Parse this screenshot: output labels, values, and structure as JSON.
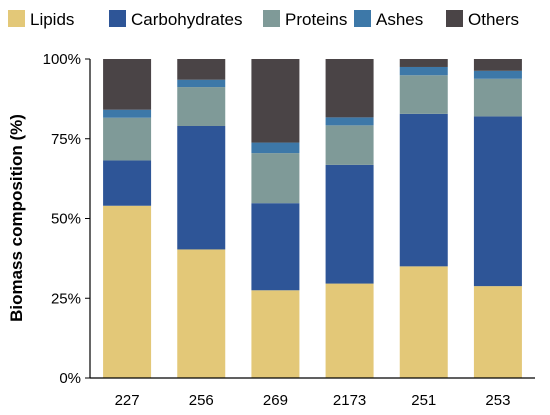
{
  "chart_data": {
    "type": "bar",
    "stacked": true,
    "percent_stacked": true,
    "categories": [
      "227",
      "256",
      "269",
      "2173",
      "251",
      "253"
    ],
    "series": [
      {
        "name": "Lipids",
        "color": "#E3C878",
        "values": [
          54.0,
          40.3,
          27.5,
          29.6,
          35.0,
          28.8
        ]
      },
      {
        "name": "Carbohydrates",
        "color": "#2E5597",
        "values": [
          14.2,
          38.7,
          27.3,
          37.2,
          47.8,
          53.2
        ]
      },
      {
        "name": "Proteins",
        "color": "#7F9A98",
        "values": [
          13.4,
          12.2,
          15.7,
          12.4,
          12.1,
          11.8
        ]
      },
      {
        "name": "Ashes",
        "color": "#3D78A8",
        "values": [
          2.5,
          2.3,
          3.3,
          2.5,
          2.6,
          2.5
        ]
      },
      {
        "name": "Others",
        "color": "#4A4446",
        "values": [
          15.9,
          6.5,
          26.2,
          18.3,
          2.5,
          3.7
        ]
      }
    ],
    "ylabel": "Biomass composition (%)",
    "ylim": [
      0,
      100
    ],
    "yticks": [
      0,
      25,
      50,
      75,
      100
    ],
    "ytick_labels": [
      "0%",
      "25%",
      "50%",
      "75%",
      "100%"
    ],
    "legend_position": "top",
    "grid": false
  }
}
